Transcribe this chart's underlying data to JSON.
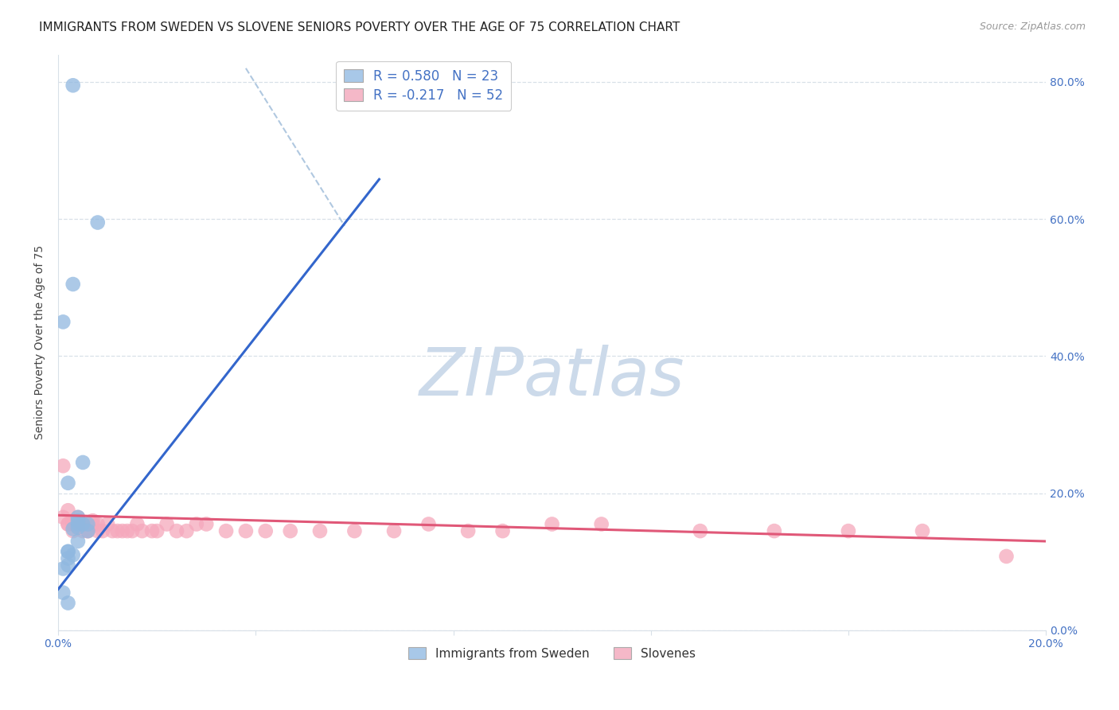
{
  "title": "IMMIGRANTS FROM SWEDEN VS SLOVENE SENIORS POVERTY OVER THE AGE OF 75 CORRELATION CHART",
  "source": "Source: ZipAtlas.com",
  "ylabel": "Seniors Poverty Over the Age of 75",
  "xlim": [
    0.0,
    0.2
  ],
  "ylim": [
    0.0,
    0.84
  ],
  "xticks": [
    0.0,
    0.04,
    0.08,
    0.12,
    0.16,
    0.2
  ],
  "yticks": [
    0.0,
    0.2,
    0.4,
    0.6,
    0.8
  ],
  "ytick_labels_right": [
    "0.0%",
    "20.0%",
    "40.0%",
    "60.0%",
    "80.0%"
  ],
  "xtick_labels": [
    "0.0%",
    "",
    "",
    "",
    "",
    "20.0%"
  ],
  "watermark": "ZIPatlas",
  "legend_entry1_color": "#a8c8e8",
  "legend_entry2_color": "#f5b8c8",
  "legend_entry1_label": "R = 0.580   N = 23",
  "legend_entry2_label": "R = -0.217   N = 52",
  "sweden_color": "#90b8e0",
  "slovene_color": "#f5a8bc",
  "sweden_line_color": "#3366cc",
  "slovene_line_color": "#e05878",
  "diag_line_color": "#b0c8e0",
  "sweden_scatter_x": [
    0.003,
    0.008,
    0.003,
    0.001,
    0.005,
    0.002,
    0.004,
    0.004,
    0.004,
    0.006,
    0.005,
    0.004,
    0.006,
    0.003,
    0.004,
    0.002,
    0.002,
    0.003,
    0.002,
    0.002,
    0.001,
    0.002,
    0.001
  ],
  "sweden_scatter_y": [
    0.795,
    0.595,
    0.505,
    0.45,
    0.245,
    0.215,
    0.165,
    0.155,
    0.16,
    0.155,
    0.155,
    0.15,
    0.145,
    0.148,
    0.13,
    0.115,
    0.115,
    0.11,
    0.105,
    0.095,
    0.09,
    0.04,
    0.055
  ],
  "slovene_scatter_x": [
    0.001,
    0.001,
    0.002,
    0.002,
    0.002,
    0.003,
    0.003,
    0.003,
    0.004,
    0.004,
    0.005,
    0.005,
    0.005,
    0.006,
    0.006,
    0.007,
    0.007,
    0.008,
    0.008,
    0.009,
    0.01,
    0.011,
    0.012,
    0.013,
    0.014,
    0.015,
    0.016,
    0.017,
    0.019,
    0.02,
    0.022,
    0.024,
    0.026,
    0.028,
    0.03,
    0.034,
    0.038,
    0.042,
    0.047,
    0.053,
    0.06,
    0.068,
    0.075,
    0.083,
    0.09,
    0.1,
    0.11,
    0.13,
    0.145,
    0.16,
    0.175,
    0.192
  ],
  "slovene_scatter_y": [
    0.24,
    0.165,
    0.155,
    0.175,
    0.155,
    0.16,
    0.155,
    0.145,
    0.165,
    0.15,
    0.155,
    0.155,
    0.145,
    0.145,
    0.145,
    0.16,
    0.155,
    0.145,
    0.155,
    0.145,
    0.155,
    0.145,
    0.145,
    0.145,
    0.145,
    0.145,
    0.155,
    0.145,
    0.145,
    0.145,
    0.155,
    0.145,
    0.145,
    0.155,
    0.155,
    0.145,
    0.145,
    0.145,
    0.145,
    0.145,
    0.145,
    0.145,
    0.155,
    0.145,
    0.145,
    0.155,
    0.155,
    0.145,
    0.145,
    0.145,
    0.145,
    0.108
  ],
  "sweden_line_x": [
    0.0,
    0.065
  ],
  "sweden_line_y": [
    0.06,
    0.658
  ],
  "slovene_line_x": [
    0.0,
    0.2
  ],
  "slovene_line_y": [
    0.168,
    0.13
  ],
  "diag_line_x": [
    0.038,
    0.058
  ],
  "diag_line_y": [
    0.82,
    0.59
  ],
  "background_color": "#ffffff",
  "grid_color": "#d8e0e8",
  "title_fontsize": 11,
  "axis_label_fontsize": 10,
  "tick_fontsize": 10,
  "legend_fontsize": 12,
  "watermark_color": "#ccdaea",
  "watermark_fontsize": 60
}
